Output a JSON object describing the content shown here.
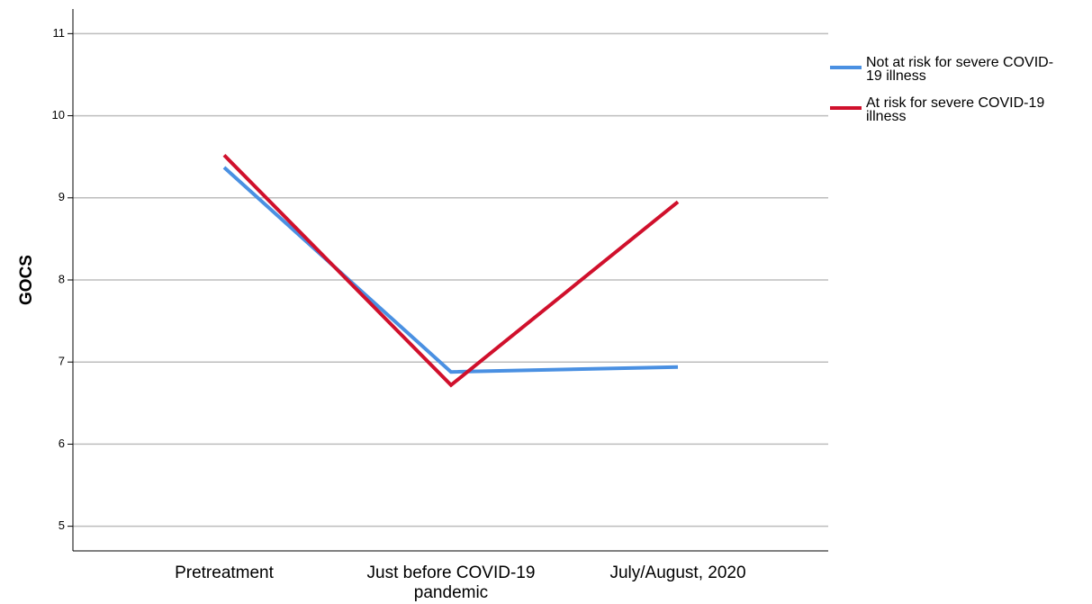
{
  "chart_data": {
    "type": "line",
    "title": "",
    "xlabel": "",
    "ylabel": "GOCS",
    "categories": [
      [
        "Pretreatment"
      ],
      [
        "Just before COVID-19",
        "pandemic"
      ],
      [
        "July/August, 2020"
      ]
    ],
    "ylim": [
      4.7,
      11.3
    ],
    "yticks": [
      5,
      6,
      7,
      8,
      9,
      10,
      11
    ],
    "grid": true,
    "legend_position": "right",
    "series": [
      {
        "name": [
          "Not at risk for severe COVID-",
          "19 illness"
        ],
        "color": "#4a90e2",
        "values": [
          9.37,
          6.88,
          6.94
        ]
      },
      {
        "name": [
          "At risk for severe COVID-19",
          "illness"
        ],
        "color": "#d0102c",
        "values": [
          9.52,
          6.72,
          8.95
        ]
      }
    ]
  }
}
